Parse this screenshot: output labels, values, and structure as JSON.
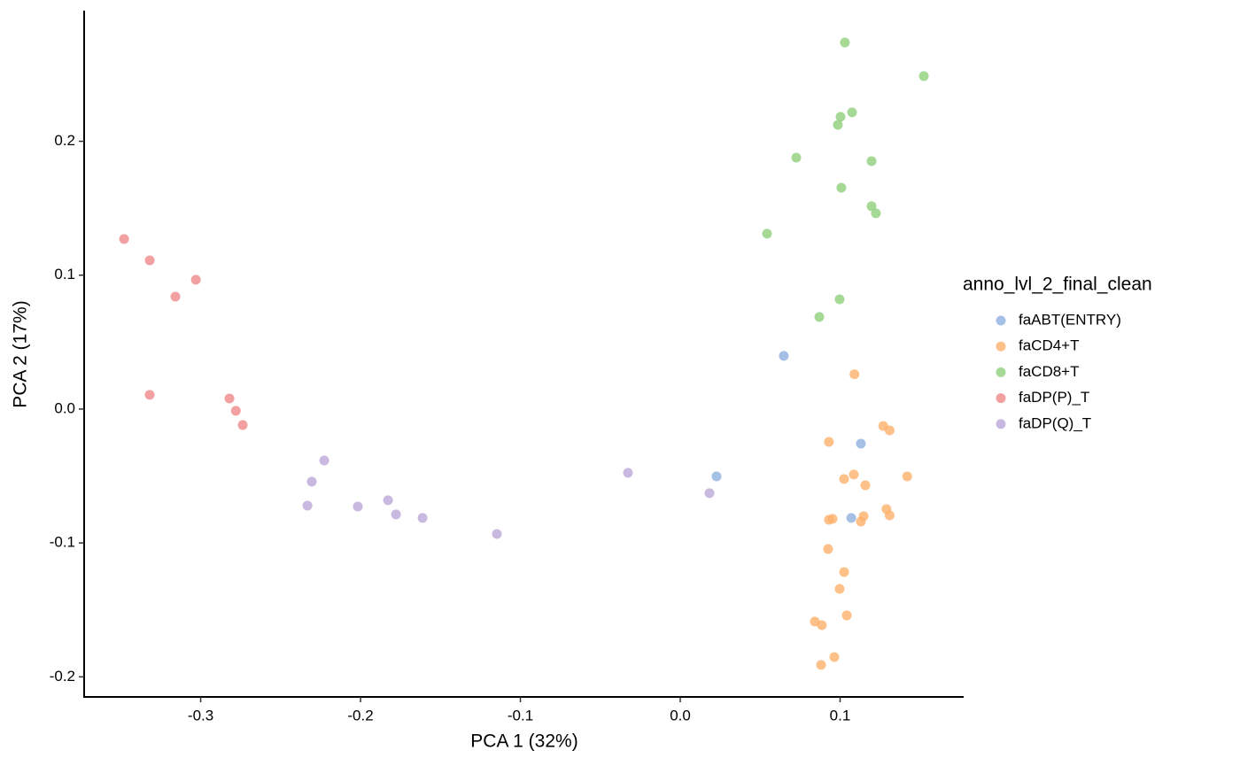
{
  "chart_data": {
    "type": "scatter",
    "x_label": "PCA 1 (32%)",
    "y_label": "PCA 2 (17%)",
    "legend_title": "anno_lvl_2_final_clean",
    "legend_position": "right",
    "xlim": [
      -0.3729,
      0.1773
    ],
    "ylim": [
      -0.215,
      0.2976
    ],
    "xticks": [
      -0.3,
      -0.2,
      -0.1,
      {
        "value": 0,
        "label": "0.0"
      },
      0.1
    ],
    "yticks": [
      -0.2,
      -0.1,
      {
        "value": 0,
        "label": "0.0"
      },
      0.1,
      0.2
    ],
    "grid": false,
    "series": [
      {
        "name": "faABT(ENTRY)",
        "color": "#8fb0de",
        "x": [
          0.0648,
          0.113,
          0.0227,
          0.107
        ],
        "values": [
          0.0397,
          -0.0258,
          -0.0503,
          -0.0813
        ]
      },
      {
        "name": "faCD4+T",
        "color": "#fdb06a",
        "x": [
          0.109,
          0.127,
          0.131,
          0.093,
          0.1086,
          0.1025,
          0.1158,
          0.142,
          0.129,
          0.131,
          0.1147,
          0.113,
          0.0953,
          0.093,
          0.0925,
          0.1025,
          0.0997,
          0.1042,
          0.0842,
          0.0886,
          0.0964,
          0.0881
        ],
        "values": [
          0.026,
          -0.0126,
          -0.0159,
          -0.0245,
          -0.0489,
          -0.0522,
          -0.0569,
          -0.0503,
          -0.0747,
          -0.0794,
          -0.08,
          -0.084,
          -0.082,
          -0.0827,
          -0.1045,
          -0.1217,
          -0.1343,
          -0.1541,
          -0.1587,
          -0.1614,
          -0.1852,
          -0.1911
        ]
      },
      {
        "name": "faCD8+T",
        "color": "#8ecf7a",
        "x": [
          0.103,
          0.1524,
          0.1075,
          0.1003,
          0.0986,
          0.0726,
          0.1197,
          0.1008,
          0.1197,
          0.1224,
          0.0543,
          0.0997,
          0.087
        ],
        "values": [
          0.2738,
          0.2487,
          0.2216,
          0.2183,
          0.2123,
          0.1878,
          0.1852,
          0.1653,
          0.1515,
          0.1462,
          0.131,
          0.082,
          0.0688
        ]
      },
      {
        "name": "faDP(P)_T",
        "color": "#ef8888",
        "x": [
          -0.3479,
          -0.3319,
          -0.303,
          -0.3158,
          -0.3319,
          -0.282,
          -0.278,
          -0.2737
        ],
        "values": [
          0.127,
          0.1111,
          0.0966,
          0.084,
          0.0106,
          0.0079,
          -0.0013,
          -0.0119
        ]
      },
      {
        "name": "faDP(Q)_T",
        "color": "#bba6d8",
        "x": [
          -0.2227,
          -0.2305,
          -0.2332,
          -0.2017,
          -0.1828,
          -0.1778,
          -0.1612,
          -0.1147,
          -0.0327,
          0.0183
        ],
        "values": [
          -0.0384,
          -0.0542,
          -0.0721,
          -0.0728,
          -0.0681,
          -0.0787,
          -0.0813,
          -0.0933,
          -0.0476,
          -0.0628
        ]
      }
    ]
  }
}
